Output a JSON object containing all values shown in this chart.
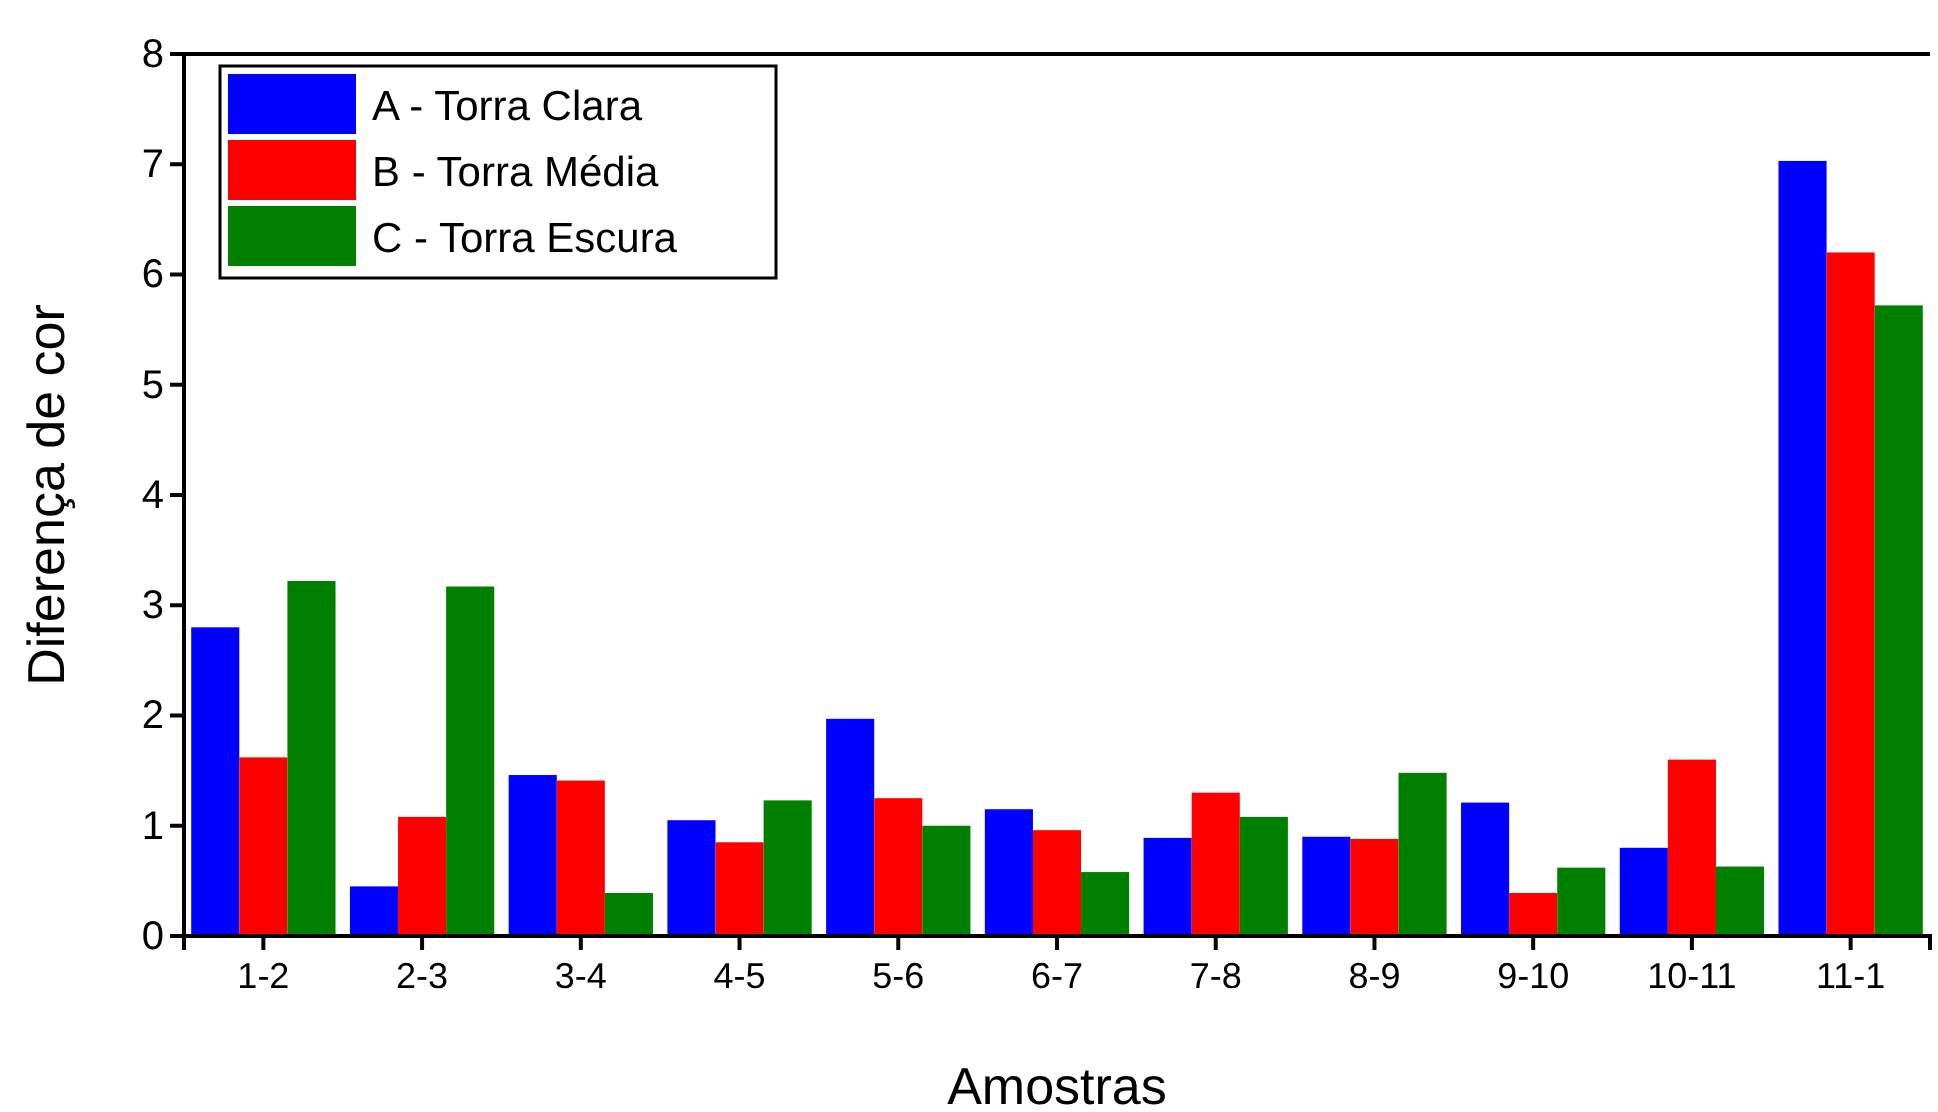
{
  "chart_data": {
    "type": "bar",
    "xlabel": "Amostras",
    "ylabel": "Diferença de cor",
    "categories": [
      "1-2",
      "2-3",
      "3-4",
      "4-5",
      "5-6",
      "6-7",
      "7-8",
      "8-9",
      "9-10",
      "10-11",
      "11-1"
    ],
    "series": [
      {
        "name": "A - Torra Clara",
        "color": "#0000ff",
        "values": [
          2.8,
          0.45,
          1.46,
          1.05,
          1.97,
          1.15,
          0.89,
          0.9,
          1.21,
          0.8,
          7.03
        ]
      },
      {
        "name": "B - Torra Média",
        "color": "#ff0000",
        "values": [
          1.62,
          1.08,
          1.41,
          0.85,
          1.25,
          0.96,
          1.3,
          0.88,
          0.39,
          1.6,
          6.2
        ]
      },
      {
        "name": "C - Torra Escura",
        "color": "#008000",
        "values": [
          3.22,
          3.17,
          0.39,
          1.23,
          1.0,
          0.58,
          1.08,
          1.48,
          0.62,
          0.63,
          5.72
        ]
      }
    ],
    "ylim": [
      0,
      8
    ],
    "yticks": [
      0,
      1,
      2,
      3,
      4,
      5,
      6,
      7,
      8
    ],
    "legend": "top left"
  }
}
